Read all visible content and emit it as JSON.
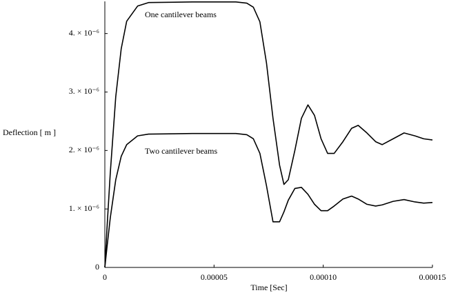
{
  "chart_data": {
    "type": "line",
    "x_label": "Time [Sec]",
    "y_label": "Deflection [ m ]",
    "annotations": [
      "One cantilever beams",
      "Two cantilever beams"
    ],
    "x": [
      0,
      1e-06,
      2.5e-06,
      5e-06,
      7.5e-06,
      1e-05,
      1.5e-05,
      2e-05,
      4e-05,
      6e-05,
      6.5e-05,
      6.8e-05,
      7.1e-05,
      7.4e-05,
      7.7e-05,
      8e-05,
      8.2e-05,
      8.4e-05,
      8.7e-05,
      9e-05,
      9.3e-05,
      9.6e-05,
      9.9e-05,
      0.000102,
      0.000105,
      0.000109,
      0.000113,
      0.000116,
      0.00012,
      0.000124,
      0.000127,
      0.000132,
      0.000137,
      0.000142,
      0.000146,
      0.00015
    ],
    "series": [
      {
        "color": "#000000",
        "values": [
          0,
          6.8e-07,
          1.62e-06,
          2.92e-06,
          3.74e-06,
          4.21e-06,
          4.47e-06,
          4.53e-06,
          4.54e-06,
          4.54e-06,
          4.52e-06,
          4.45e-06,
          4.2e-06,
          3.5e-06,
          2.55e-06,
          1.75e-06,
          1.42e-06,
          1.5e-06,
          2e-06,
          2.55e-06,
          2.78e-06,
          2.6e-06,
          2.2e-06,
          1.95e-06,
          1.95e-06,
          2.15e-06,
          2.38e-06,
          2.43e-06,
          2.3e-06,
          2.15e-06,
          2.1e-06,
          2.2e-06,
          2.3e-06,
          2.25e-06,
          2.2e-06,
          2.18e-06
        ]
      },
      {
        "color": "#000000",
        "values": [
          0,
          3.5e-07,
          8.5e-07,
          1.5e-06,
          1.9e-06,
          2.1e-06,
          2.25e-06,
          2.28e-06,
          2.29e-06,
          2.29e-06,
          2.27e-06,
          2.2e-06,
          1.95e-06,
          1.4e-06,
          7.8e-07,
          7.8e-07,
          9.5e-07,
          1.15e-06,
          1.35e-06,
          1.37e-06,
          1.25e-06,
          1.08e-06,
          9.7e-07,
          9.7e-07,
          1.05e-06,
          1.17e-06,
          1.22e-06,
          1.17e-06,
          1.08e-06,
          1.05e-06,
          1.07e-06,
          1.13e-06,
          1.16e-06,
          1.12e-06,
          1.1e-06,
          1.11e-06
        ]
      }
    ],
    "xlim": [
      0,
      0.00015
    ],
    "ylim": [
      0,
      4.55e-06
    ],
    "xticks": [
      0,
      {
        "value": 5e-05,
        "label": "0.00005"
      },
      {
        "value": 0.0001,
        "label": "0.00010"
      },
      {
        "value": 0.00015,
        "label": "0.00015"
      }
    ],
    "yticks": [
      0,
      {
        "value": 1e-06,
        "label": "1. × 10⁻⁶"
      },
      {
        "value": 2e-06,
        "label": "2. × 10⁻⁶"
      },
      {
        "value": 3e-06,
        "label": "3. × 10⁻⁶"
      },
      {
        "value": 4e-06,
        "label": "4. × 10⁻⁶"
      }
    ],
    "grid": false
  }
}
